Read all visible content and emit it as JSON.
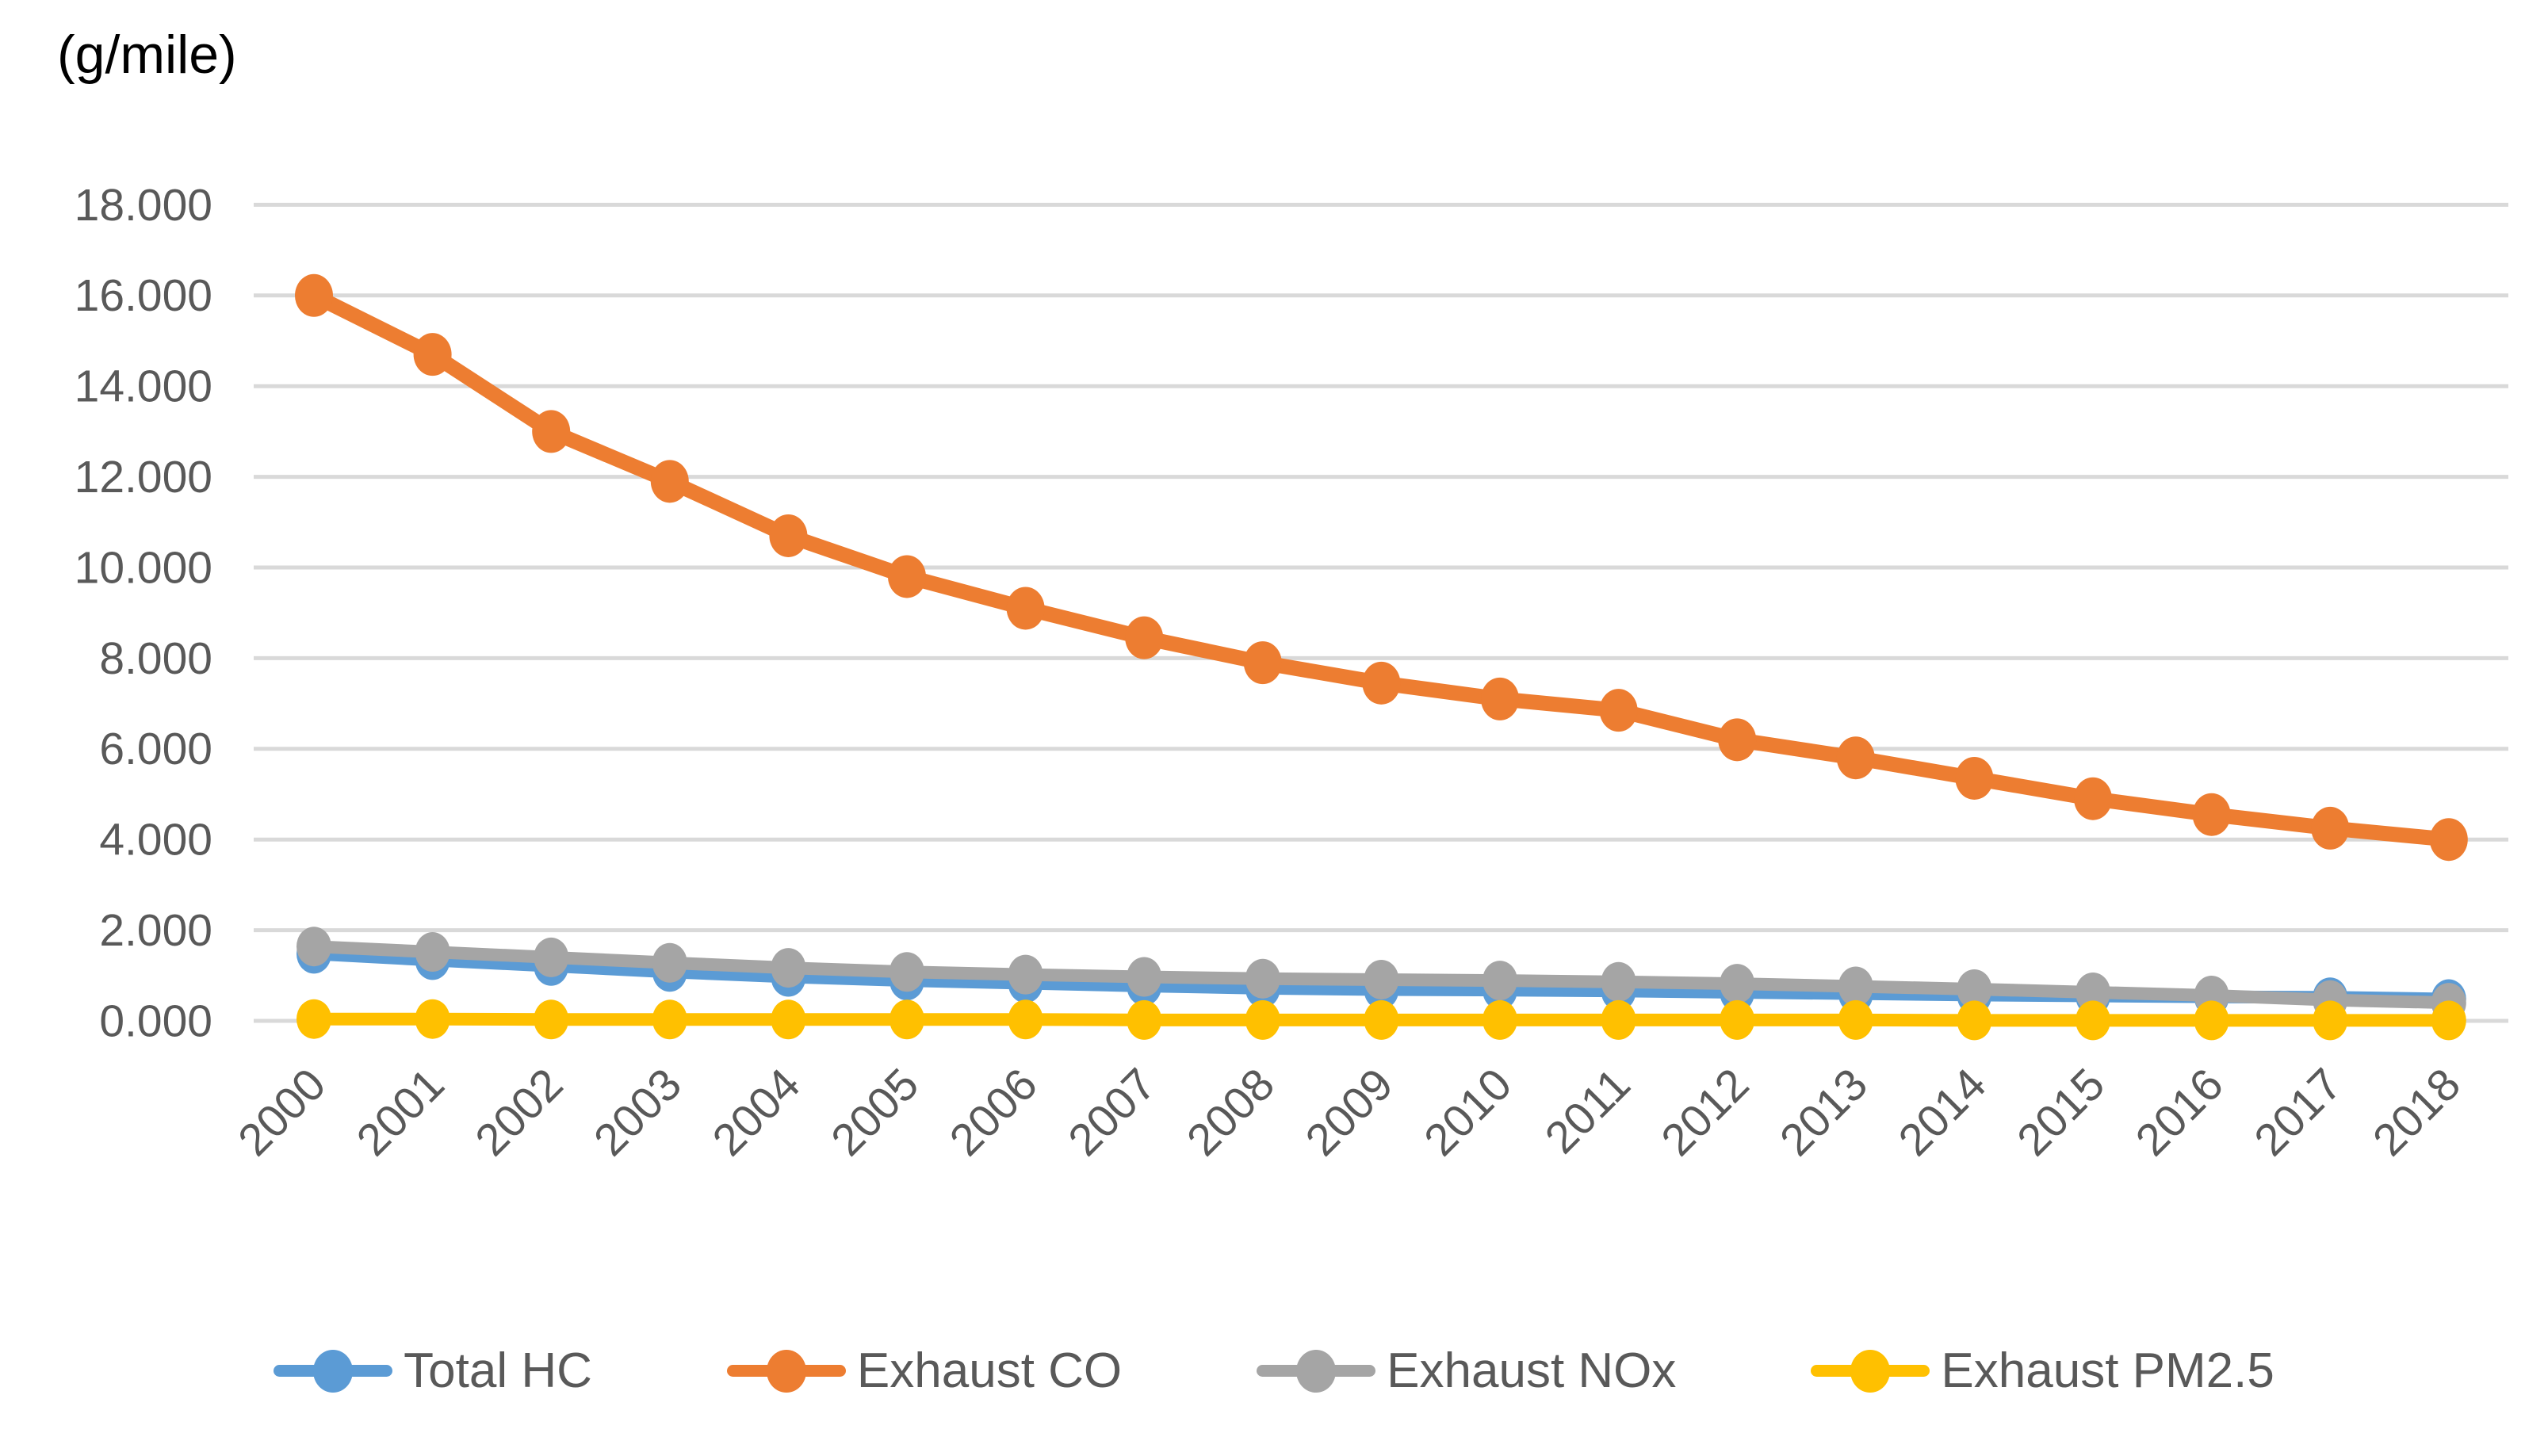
{
  "chart_data": {
    "type": "line",
    "title": "(g/mile)",
    "xlabel": "",
    "ylabel": "(g/mile)",
    "categories": [
      "2000",
      "2001",
      "2002",
      "2003",
      "2004",
      "2005",
      "2006",
      "2007",
      "2008",
      "2009",
      "2010",
      "2011",
      "2012",
      "2013",
      "2014",
      "2015",
      "2016",
      "2017",
      "2018"
    ],
    "series": [
      {
        "name": "Total HC",
        "color": "#5B9BD5",
        "values": [
          1.48,
          1.34,
          1.21,
          1.08,
          0.97,
          0.89,
          0.83,
          0.77,
          0.72,
          0.69,
          0.68,
          0.66,
          0.63,
          0.6,
          0.57,
          0.55,
          0.53,
          0.52,
          0.48
        ]
      },
      {
        "name": "Exhaust CO",
        "color": "#ED7D31",
        "values": [
          16.0,
          14.7,
          13.0,
          11.9,
          10.7,
          9.8,
          9.1,
          8.45,
          7.9,
          7.45,
          7.1,
          6.85,
          6.2,
          5.8,
          5.35,
          4.9,
          4.55,
          4.25,
          4.0
        ]
      },
      {
        "name": "Exhaust NOx",
        "color": "#A5A5A5",
        "values": [
          1.64,
          1.52,
          1.4,
          1.28,
          1.17,
          1.08,
          1.02,
          0.97,
          0.93,
          0.91,
          0.89,
          0.86,
          0.82,
          0.76,
          0.7,
          0.63,
          0.56,
          0.46,
          0.4
        ]
      },
      {
        "name": "Exhaust PM2.5",
        "color": "#FFC000",
        "values": [
          0.04,
          0.04,
          0.03,
          0.03,
          0.03,
          0.03,
          0.03,
          0.02,
          0.02,
          0.02,
          0.02,
          0.02,
          0.02,
          0.02,
          0.01,
          0.01,
          0.01,
          0.01,
          0.01
        ]
      }
    ],
    "y_axis": {
      "min": 0,
      "max": 18,
      "step": 2,
      "tick_labels": [
        "0.000",
        "2.000",
        "4.000",
        "6.000",
        "8.000",
        "10.000",
        "12.000",
        "14.000",
        "16.000",
        "18.000"
      ]
    },
    "x_axis": {
      "label_rotation_deg": -45
    },
    "grid": {
      "horizontal": true,
      "vertical": false,
      "color": "#D9D9D9"
    },
    "legend": {
      "position": "bottom"
    },
    "colors": {
      "axis_label": "#595959",
      "legend_text": "#595959",
      "title_text": "#000000",
      "background": "#FFFFFF"
    }
  }
}
